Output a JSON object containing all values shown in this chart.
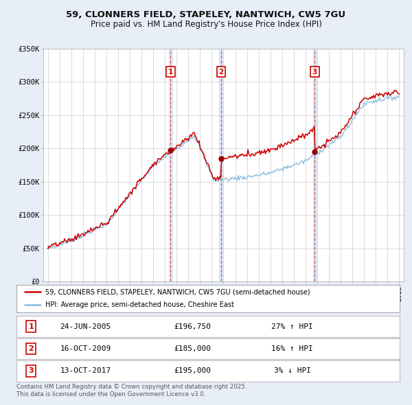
{
  "title": "59, CLONNERS FIELD, STAPELEY, NANTWICH, CW5 7GU",
  "subtitle": "Price paid vs. HM Land Registry's House Price Index (HPI)",
  "ylim": [
    0,
    350000
  ],
  "yticks": [
    0,
    50000,
    100000,
    150000,
    200000,
    250000,
    300000,
    350000
  ],
  "ytick_labels": [
    "£0",
    "£50K",
    "£100K",
    "£150K",
    "£200K",
    "£250K",
    "£300K",
    "£350K"
  ],
  "sale_dates": [
    2005.48,
    2009.79,
    2017.79
  ],
  "sale_prices": [
    196750,
    185000,
    195000
  ],
  "sale_labels": [
    "1",
    "2",
    "3"
  ],
  "sale_info": [
    {
      "num": "1",
      "date": "24-JUN-2005",
      "price": "£196,750",
      "pct": "27% ↑ HPI"
    },
    {
      "num": "2",
      "date": "16-OCT-2009",
      "price": "£185,000",
      "pct": "16% ↑ HPI"
    },
    {
      "num": "3",
      "date": "13-OCT-2017",
      "price": "£195,000",
      "pct": "3% ↓ HPI"
    }
  ],
  "legend_line1": "59, CLONNERS FIELD, STAPELEY, NANTWICH, CW5 7GU (semi-detached house)",
  "legend_line2": "HPI: Average price, semi-detached house, Cheshire East",
  "footer1": "Contains HM Land Registry data © Crown copyright and database right 2025.",
  "footer2": "This data is licensed under the Open Government Licence v3.0.",
  "line_color_red": "#cc0000",
  "line_color_blue": "#88bbdd",
  "background_color": "#e8eef8",
  "plot_bg": "#ffffff",
  "grid_color": "#cccccc",
  "shade_color": "#dde8f8",
  "xlim_left": 1994.6,
  "xlim_right": 2025.4
}
